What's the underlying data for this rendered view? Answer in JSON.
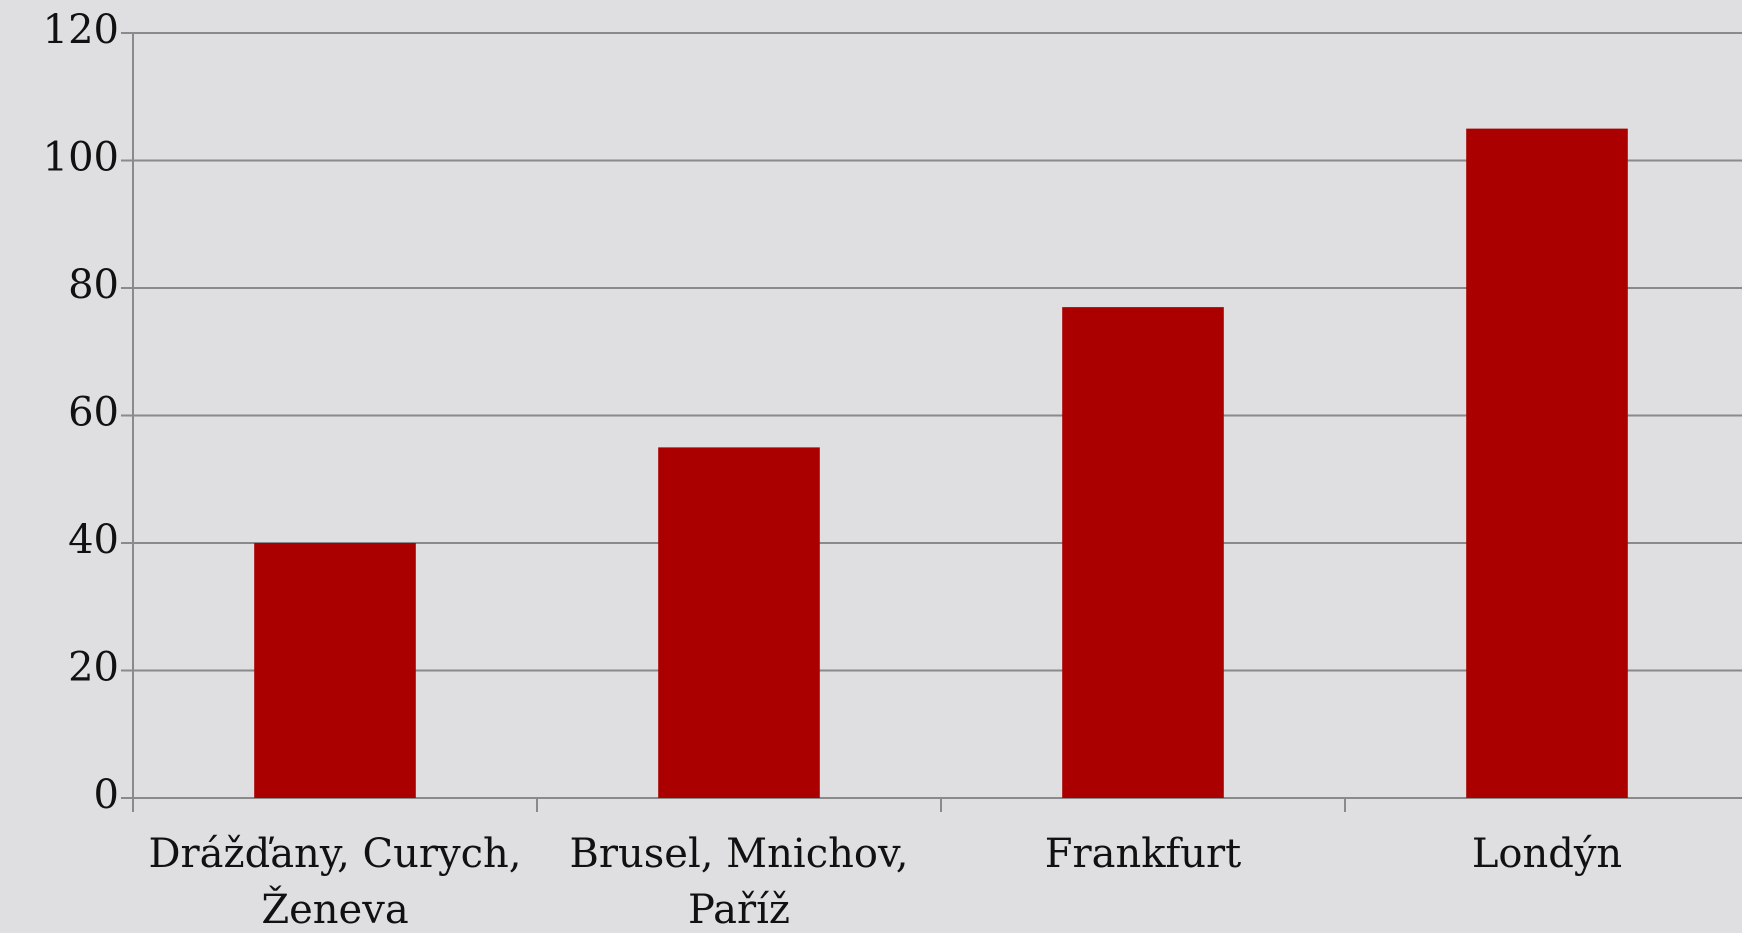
{
  "chart_data": {
    "type": "bar",
    "categories": [
      "Drážďany, Curych, Ženeva",
      "Brusel, Mnichov, Paříž",
      "Frankfurt",
      "Londýn"
    ],
    "values": [
      40,
      55,
      77,
      105
    ],
    "color": "#aa0000",
    "ylim": [
      0,
      120
    ],
    "yticks": [
      0,
      20,
      40,
      60,
      80,
      100,
      120
    ],
    "grid": true
  }
}
